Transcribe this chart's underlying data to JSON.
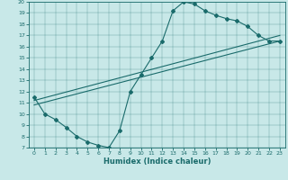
{
  "title": "",
  "xlabel": "Humidex (Indice chaleur)",
  "bg_color": "#c8e8e8",
  "line_color": "#1a6b6b",
  "xlim": [
    -0.5,
    23.5
  ],
  "ylim": [
    7,
    20
  ],
  "xticks": [
    0,
    1,
    2,
    3,
    4,
    5,
    6,
    7,
    8,
    9,
    10,
    11,
    12,
    13,
    14,
    15,
    16,
    17,
    18,
    19,
    20,
    21,
    22,
    23
  ],
  "yticks": [
    7,
    8,
    9,
    10,
    11,
    12,
    13,
    14,
    15,
    16,
    17,
    18,
    19,
    20
  ],
  "line1_x": [
    0,
    1,
    2,
    3,
    4,
    5,
    6,
    7,
    8,
    9,
    10,
    11,
    12,
    13,
    14,
    15,
    16,
    17,
    18,
    19,
    20,
    21,
    22,
    23
  ],
  "line1_y": [
    11.5,
    10.0,
    9.5,
    8.8,
    8.0,
    7.5,
    7.2,
    7.0,
    8.5,
    12.0,
    13.5,
    15.0,
    16.5,
    19.2,
    20.0,
    19.8,
    19.2,
    18.8,
    18.5,
    18.3,
    17.8,
    17.0,
    16.5,
    16.5
  ],
  "line2_x": [
    0,
    23
  ],
  "line2_y": [
    10.8,
    16.5
  ],
  "line3_x": [
    0,
    23
  ],
  "line3_y": [
    11.2,
    17.0
  ]
}
